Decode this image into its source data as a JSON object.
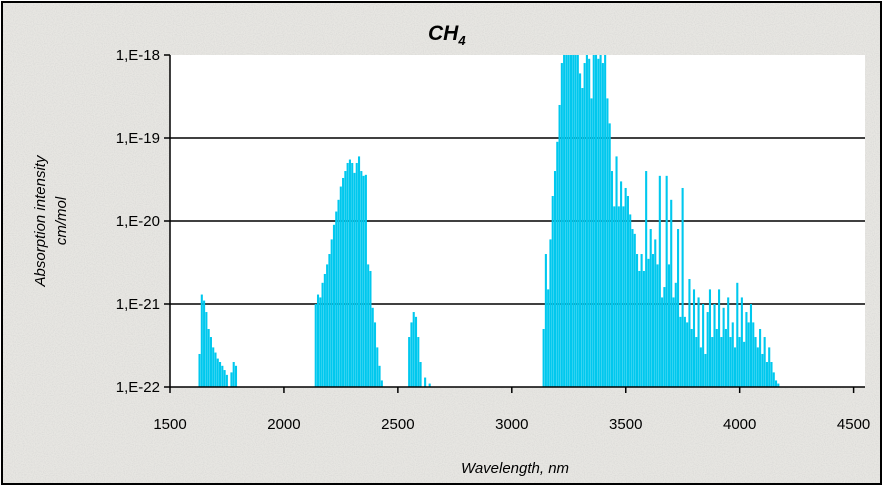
{
  "chart_data": {
    "type": "bar",
    "title": "CH",
    "title_subscript": "4",
    "xlabel": "Wavelength, nm",
    "ylabel_line1": "Absorption intensity",
    "ylabel_line2": "cm/mol",
    "x_ticks": [
      "1500",
      "2000",
      "2500",
      "3000",
      "3500",
      "4000",
      "4500"
    ],
    "xlim": [
      1500,
      4550
    ],
    "y_scale": "log",
    "ylim": [
      1e-22,
      1e-18
    ],
    "y_ticks": [
      "1,E-18",
      "1,E-19",
      "1,E-20",
      "1,E-21",
      "1,E-22"
    ],
    "grid": "horizontal",
    "legend": "none",
    "bar_color": "#00c8ee",
    "bar_width_nm": 10,
    "bands": [
      {
        "x": [
          1630,
          1640,
          1650,
          1660,
          1670,
          1680,
          1690,
          1700,
          1710,
          1720,
          1730,
          1740,
          1750,
          1770,
          1780,
          1790
        ],
        "y": [
          2.5e-22,
          1.3e-21,
          1.1e-21,
          8e-22,
          5e-22,
          4e-22,
          3e-22,
          2.6e-22,
          2.2e-22,
          2e-22,
          1.8e-22,
          1.6e-22,
          1.4e-22,
          1.5e-22,
          2e-22,
          1.8e-22
        ]
      },
      {
        "x": [
          2140,
          2150,
          2160,
          2170,
          2180,
          2190,
          2200,
          2210,
          2220,
          2230,
          2240,
          2250,
          2260,
          2270,
          2280,
          2290,
          2300,
          2310,
          2320,
          2330,
          2340,
          2350,
          2360,
          2370,
          2380,
          2390,
          2400,
          2410,
          2420,
          2430
        ],
        "y": [
          1e-21,
          1.3e-21,
          1.2e-21,
          1.8e-21,
          2.3e-21,
          3e-21,
          4e-21,
          6e-21,
          9e-21,
          1.3e-20,
          1.8e-20,
          2.6e-20,
          3.3e-20,
          4e-20,
          5e-20,
          5.5e-20,
          5e-20,
          3.8e-20,
          5e-20,
          6e-20,
          4e-20,
          3.5e-20,
          3.6e-20,
          3e-21,
          2.5e-21,
          9e-22,
          6e-22,
          3e-22,
          1.8e-22,
          1.2e-22
        ]
      },
      {
        "x": [
          2550,
          2560,
          2570,
          2580,
          2590,
          2600,
          2620,
          2640
        ],
        "y": [
          4e-22,
          6e-22,
          8e-22,
          7e-22,
          4e-22,
          2e-22,
          1.3e-22,
          1.1e-22
        ]
      },
      {
        "x": [
          3140,
          3150,
          3160,
          3170,
          3180,
          3190,
          3200,
          3210,
          3220,
          3230,
          3240,
          3250,
          3260,
          3270,
          3280,
          3290,
          3300,
          3310,
          3320,
          3330,
          3340,
          3350,
          3360,
          3370,
          3380,
          3390,
          3400,
          3410,
          3420,
          3430,
          3440,
          3450,
          3460,
          3470,
          3480,
          3490,
          3500,
          3510,
          3520,
          3530,
          3540,
          3550,
          3560,
          3570,
          3580,
          3590,
          3600,
          3610,
          3620,
          3630,
          3640,
          3650,
          3660,
          3670,
          3680,
          3690,
          3700,
          3710,
          3720,
          3730,
          3740,
          3750,
          3760,
          3770,
          3780,
          3790,
          3800,
          3810,
          3820,
          3830,
          3840,
          3850,
          3860,
          3870,
          3880,
          3890,
          3900,
          3910,
          3920,
          3930,
          3940,
          3950,
          3960,
          3970,
          3980,
          3990,
          4000,
          4010,
          4020,
          4030,
          4040,
          4050,
          4060,
          4070,
          4080,
          4090,
          4100,
          4110,
          4120,
          4130,
          4140,
          4150,
          4160,
          4170
        ],
        "y": [
          5e-22,
          4e-21,
          1.5e-21,
          6e-21,
          2e-20,
          4e-20,
          9e-20,
          2.5e-19,
          8e-19,
          1.2e-18,
          1.8e-18,
          1.6e-18,
          2e-18,
          2.3e-18,
          1.8e-18,
          1.2e-18,
          6e-19,
          4e-19,
          8e-19,
          1.5e-18,
          9e-19,
          3e-19,
          1.2e-18,
          1e-18,
          9e-19,
          1e-18,
          8e-19,
          1e-18,
          3e-19,
          1.5e-19,
          4e-20,
          1.5e-20,
          6e-20,
          1.5e-20,
          3e-20,
          1.5e-20,
          2.5e-20,
          2e-20,
          1.2e-20,
          8e-21,
          7e-21,
          4e-21,
          2.5e-21,
          4e-21,
          2.5e-21,
          4e-20,
          3.5e-21,
          8e-21,
          4e-21,
          6e-21,
          3e-21,
          3.5e-20,
          1.2e-21,
          1.6e-21,
          3.5e-20,
          3e-21,
          1.8e-20,
          1.2e-21,
          1.8e-21,
          8e-21,
          7e-22,
          2.5e-20,
          7e-22,
          6e-22,
          2e-21,
          5e-22,
          1.5e-21,
          4e-22,
          1.2e-21,
          3e-22,
          1e-21,
          2.5e-22,
          8e-22,
          1.5e-21,
          4e-22,
          1e-21,
          5e-22,
          1.5e-21,
          4e-22,
          9e-22,
          5e-22,
          1.2e-21,
          4e-22,
          6e-22,
          3e-22,
          1.8e-21,
          4e-22,
          1.2e-21,
          3.5e-22,
          8e-22,
          6e-22,
          1e-21,
          6e-22,
          4e-22,
          3e-22,
          5e-22,
          2.5e-22,
          4e-22,
          2e-22,
          3e-22,
          2e-22,
          1.5e-22,
          1.2e-22,
          1.1e-22
        ]
      }
    ]
  }
}
